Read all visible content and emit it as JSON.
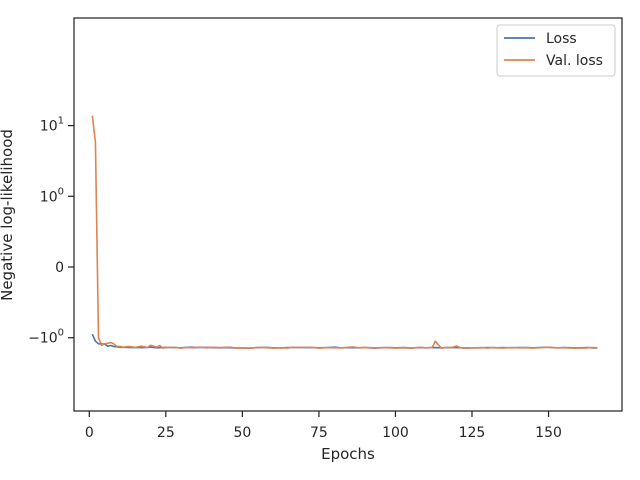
{
  "chart_data": {
    "type": "line",
    "title": "",
    "xlabel": "Epochs",
    "ylabel": "Negative log-likelihood",
    "yscale": "symlog",
    "xlim": [
      -5,
      174
    ],
    "xticks": [
      0,
      25,
      50,
      75,
      100,
      125,
      150
    ],
    "yticks": [
      {
        "value": 10,
        "base": "10",
        "exp": "1"
      },
      {
        "value": 1,
        "base": "10",
        "exp": "0"
      },
      {
        "value": 0,
        "base": "0",
        "exp": ""
      },
      {
        "value": -1,
        "base": "−10",
        "exp": "0"
      }
    ],
    "grid": false,
    "legend_position": "top-right",
    "series": [
      {
        "name": "Loss",
        "color": "#4c72b0",
        "points": [
          [
            1,
            -0.95
          ],
          [
            2,
            -1.12
          ],
          [
            3,
            -1.22
          ],
          [
            5,
            -1.23
          ],
          [
            6,
            -1.32
          ],
          [
            7,
            -1.29
          ],
          [
            8,
            -1.33
          ],
          [
            9,
            -1.35
          ],
          [
            10,
            -1.36
          ],
          [
            12,
            -1.37
          ],
          [
            15,
            -1.38
          ],
          [
            18,
            -1.38
          ],
          [
            20,
            -1.36
          ],
          [
            22,
            -1.39
          ],
          [
            25,
            -1.37
          ],
          [
            28,
            -1.38
          ],
          [
            30,
            -1.39
          ],
          [
            33,
            -1.36
          ],
          [
            35,
            -1.38
          ],
          [
            38,
            -1.37
          ],
          [
            40,
            -1.38
          ],
          [
            43,
            -1.39
          ],
          [
            45,
            -1.38
          ],
          [
            48,
            -1.4
          ],
          [
            50,
            -1.39
          ],
          [
            52,
            -1.41
          ],
          [
            55,
            -1.38
          ],
          [
            58,
            -1.37
          ],
          [
            60,
            -1.39
          ],
          [
            63,
            -1.39
          ],
          [
            65,
            -1.38
          ],
          [
            68,
            -1.37
          ],
          [
            70,
            -1.38
          ],
          [
            73,
            -1.38
          ],
          [
            75,
            -1.39
          ],
          [
            78,
            -1.38
          ],
          [
            80,
            -1.36
          ],
          [
            82,
            -1.39
          ],
          [
            85,
            -1.38
          ],
          [
            88,
            -1.39
          ],
          [
            90,
            -1.38
          ],
          [
            93,
            -1.4
          ],
          [
            95,
            -1.39
          ],
          [
            98,
            -1.38
          ],
          [
            100,
            -1.39
          ],
          [
            103,
            -1.38
          ],
          [
            105,
            -1.4
          ],
          [
            108,
            -1.38
          ],
          [
            110,
            -1.39
          ],
          [
            113,
            -1.38
          ],
          [
            115,
            -1.39
          ],
          [
            118,
            -1.38
          ],
          [
            120,
            -1.38
          ],
          [
            123,
            -1.4
          ],
          [
            125,
            -1.39
          ],
          [
            128,
            -1.39
          ],
          [
            130,
            -1.38
          ],
          [
            133,
            -1.39
          ],
          [
            135,
            -1.38
          ],
          [
            138,
            -1.39
          ],
          [
            140,
            -1.38
          ],
          [
            143,
            -1.38
          ],
          [
            145,
            -1.39
          ],
          [
            148,
            -1.37
          ],
          [
            150,
            -1.37
          ],
          [
            153,
            -1.39
          ],
          [
            155,
            -1.38
          ],
          [
            158,
            -1.39
          ],
          [
            160,
            -1.39
          ],
          [
            163,
            -1.38
          ],
          [
            165,
            -1.4
          ],
          [
            166,
            -1.39
          ]
        ]
      },
      {
        "name": "Val. loss",
        "color": "#dd8452",
        "points": [
          [
            1,
            13.8
          ],
          [
            2,
            5.8
          ],
          [
            3,
            -1.0
          ],
          [
            4,
            -1.28
          ],
          [
            5,
            -1.22
          ],
          [
            6,
            -1.2
          ],
          [
            7,
            -1.17
          ],
          [
            8,
            -1.22
          ],
          [
            9,
            -1.33
          ],
          [
            10,
            -1.33
          ],
          [
            11,
            -1.36
          ],
          [
            13,
            -1.33
          ],
          [
            15,
            -1.37
          ],
          [
            17,
            -1.32
          ],
          [
            19,
            -1.37
          ],
          [
            20,
            -1.28
          ],
          [
            22,
            -1.36
          ],
          [
            23,
            -1.29
          ],
          [
            24,
            -1.4
          ],
          [
            26,
            -1.37
          ],
          [
            28,
            -1.38
          ],
          [
            30,
            -1.4
          ],
          [
            32,
            -1.37
          ],
          [
            34,
            -1.39
          ],
          [
            36,
            -1.36
          ],
          [
            38,
            -1.39
          ],
          [
            40,
            -1.37
          ],
          [
            43,
            -1.38
          ],
          [
            46,
            -1.36
          ],
          [
            48,
            -1.4
          ],
          [
            50,
            -1.39
          ],
          [
            53,
            -1.4
          ],
          [
            55,
            -1.37
          ],
          [
            57,
            -1.38
          ],
          [
            60,
            -1.4
          ],
          [
            62,
            -1.39
          ],
          [
            65,
            -1.4
          ],
          [
            66,
            -1.37
          ],
          [
            68,
            -1.38
          ],
          [
            70,
            -1.37
          ],
          [
            72,
            -1.37
          ],
          [
            75,
            -1.4
          ],
          [
            78,
            -1.38
          ],
          [
            80,
            -1.39
          ],
          [
            83,
            -1.39
          ],
          [
            86,
            -1.35
          ],
          [
            88,
            -1.39
          ],
          [
            90,
            -1.38
          ],
          [
            93,
            -1.39
          ],
          [
            96,
            -1.38
          ],
          [
            98,
            -1.39
          ],
          [
            100,
            -1.4
          ],
          [
            103,
            -1.39
          ],
          [
            105,
            -1.4
          ],
          [
            108,
            -1.37
          ],
          [
            110,
            -1.39
          ],
          [
            112,
            -1.38
          ],
          [
            113,
            -1.12
          ],
          [
            114,
            -1.26
          ],
          [
            115,
            -1.4
          ],
          [
            117,
            -1.37
          ],
          [
            118,
            -1.39
          ],
          [
            120,
            -1.31
          ],
          [
            121,
            -1.38
          ],
          [
            122,
            -1.4
          ],
          [
            125,
            -1.39
          ],
          [
            127,
            -1.39
          ],
          [
            128,
            -1.38
          ],
          [
            130,
            -1.4
          ],
          [
            132,
            -1.38
          ],
          [
            135,
            -1.4
          ],
          [
            138,
            -1.38
          ],
          [
            140,
            -1.39
          ],
          [
            143,
            -1.39
          ],
          [
            145,
            -1.4
          ],
          [
            148,
            -1.38
          ],
          [
            150,
            -1.36
          ],
          [
            152,
            -1.39
          ],
          [
            155,
            -1.39
          ],
          [
            158,
            -1.4
          ],
          [
            160,
            -1.4
          ],
          [
            162,
            -1.4
          ],
          [
            164,
            -1.38
          ],
          [
            166,
            -1.39
          ]
        ]
      }
    ]
  }
}
